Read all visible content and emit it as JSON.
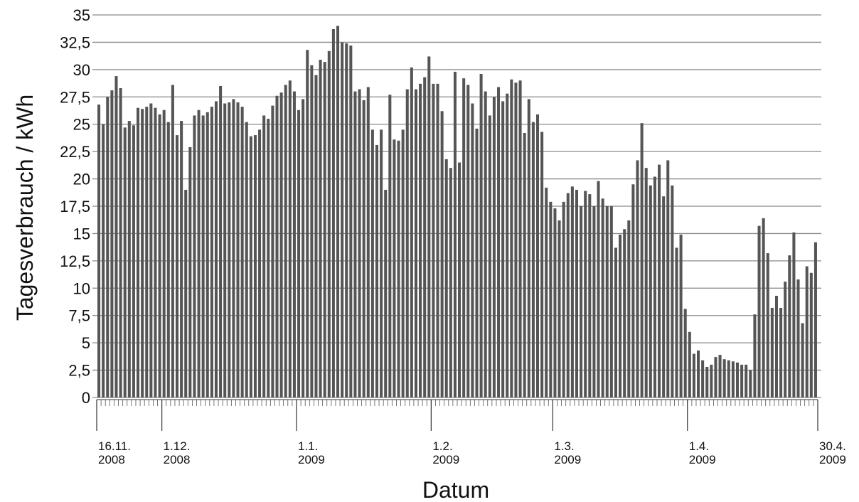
{
  "chart_data": {
    "type": "bar",
    "title": "",
    "xlabel": "Datum",
    "ylabel": "Tagesverbrauch / kWh",
    "ylim": [
      0,
      35
    ],
    "grid": true,
    "legend": "none",
    "start_date": "2008-11-16",
    "end_date": "2009-04-30",
    "ytick_labels": [
      "0",
      "2,5",
      "5",
      "7,5",
      "10",
      "12,5",
      "15",
      "17,5",
      "20",
      "22,5",
      "25",
      "27,5",
      "30",
      "32,5",
      "35"
    ],
    "yticks": [
      0,
      2.5,
      5,
      7.5,
      10,
      12.5,
      15,
      17.5,
      20,
      22.5,
      25,
      27.5,
      30,
      32.5,
      35
    ],
    "xtick_labels": [
      {
        "date": "2008-11-16",
        "line1": "16.11.",
        "line2": "2008"
      },
      {
        "date": "2008-12-01",
        "line1": "1.12.",
        "line2": "2008"
      },
      {
        "date": "2009-01-01",
        "line1": "1.1.",
        "line2": "2009"
      },
      {
        "date": "2009-02-01",
        "line1": "1.2.",
        "line2": "2009"
      },
      {
        "date": "2009-03-01",
        "line1": "1.3.",
        "line2": "2009"
      },
      {
        "date": "2009-04-01",
        "line1": "1.4.",
        "line2": "2009"
      },
      {
        "date": "2009-04-30",
        "line1": "30.4.",
        "line2": "2009"
      }
    ],
    "values": [
      26.8,
      25.0,
      27.5,
      28.1,
      29.4,
      28.3,
      24.7,
      25.3,
      24.9,
      26.5,
      26.4,
      26.6,
      26.9,
      26.5,
      25.9,
      26.3,
      25.2,
      28.6,
      24.0,
      25.3,
      19.0,
      22.9,
      25.8,
      26.3,
      25.8,
      26.1,
      26.6,
      27.1,
      28.5,
      26.9,
      27.0,
      27.3,
      27.0,
      26.6,
      25.2,
      23.9,
      24.0,
      24.5,
      25.8,
      25.5,
      26.7,
      27.6,
      27.9,
      28.6,
      29.0,
      28.0,
      26.3,
      27.3,
      31.8,
      30.4,
      29.5,
      30.9,
      30.7,
      31.7,
      33.7,
      34.0,
      32.5,
      32.4,
      32.2,
      28.0,
      28.2,
      27.2,
      28.4,
      24.5,
      23.1,
      24.5,
      19.0,
      27.7,
      23.6,
      23.5,
      24.5,
      28.2,
      30.2,
      28.2,
      28.7,
      29.3,
      31.2,
      28.7,
      28.7,
      26.2,
      21.8,
      21.0,
      29.8,
      21.5,
      29.2,
      28.6,
      26.9,
      24.6,
      29.6,
      28.0,
      25.8,
      27.5,
      28.4,
      27.1,
      27.8,
      29.1,
      28.8,
      29.0,
      24.2,
      27.3,
      25.2,
      25.9,
      24.3,
      19.2,
      17.9,
      17.3,
      16.2,
      17.9,
      18.7,
      19.3,
      19.0,
      17.5,
      18.9,
      18.6,
      17.5,
      19.8,
      18.2,
      17.5,
      17.5,
      13.7,
      14.9,
      15.4,
      16.2,
      19.5,
      21.7,
      25.1,
      21.0,
      19.4,
      20.2,
      21.3,
      18.4,
      21.7,
      19.4,
      13.7,
      14.9,
      8.1,
      6.0,
      4.0,
      4.3,
      3.4,
      2.8,
      3.0,
      3.7,
      3.9,
      3.5,
      3.4,
      3.3,
      3.2,
      3.0,
      3.0,
      2.5,
      7.6,
      15.7,
      16.4,
      13.2,
      8.2,
      9.3,
      8.2,
      10.6,
      13.0,
      15.1,
      10.8,
      6.8,
      12.0,
      11.4,
      14.2
    ]
  }
}
